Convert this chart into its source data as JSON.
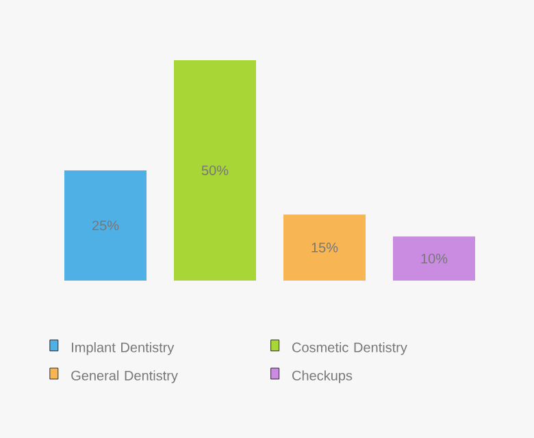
{
  "chart_data": {
    "type": "bar",
    "categories": [
      null,
      null,
      null,
      null
    ],
    "stacked": true,
    "series": [
      {
        "name": "Implant Dentistry",
        "color": "#4fb0e5",
        "values": [
          25,
          0,
          0,
          0
        ],
        "value_labels": [
          "25%",
          null,
          null,
          null
        ]
      },
      {
        "name": "Cosmetic Dentistry",
        "color": "#a8d636",
        "values": [
          0,
          50,
          0,
          0
        ],
        "value_labels": [
          null,
          "50%",
          null,
          null
        ]
      },
      {
        "name": "General Dentistry",
        "color": "#f8b553",
        "values": [
          0,
          0,
          15,
          0
        ],
        "value_labels": [
          null,
          null,
          "15%",
          null
        ]
      },
      {
        "name": "Checkups",
        "color": "#c98ce0",
        "values": [
          0,
          0,
          0,
          10
        ],
        "value_labels": [
          null,
          null,
          null,
          "10%"
        ]
      }
    ],
    "legend": "bottom"
  }
}
